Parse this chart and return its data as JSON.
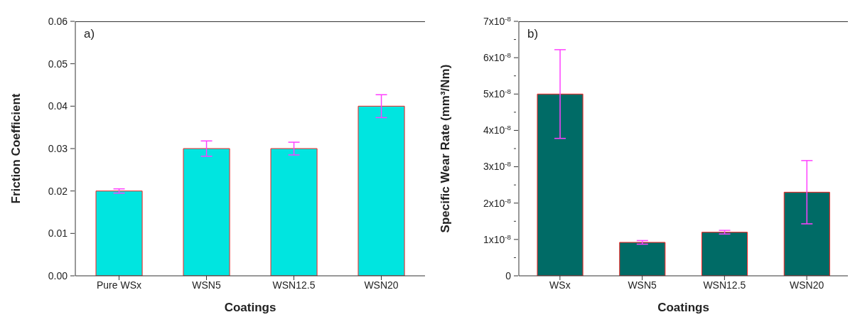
{
  "chart_data": [
    {
      "type": "bar",
      "title": "a)",
      "xlabel": "Coatings",
      "ylabel": "Friction Coefficient",
      "categories": [
        "Pure WSx",
        "WSN5",
        "WSN12.5",
        "WSN20"
      ],
      "values": [
        0.02,
        0.03,
        0.03,
        0.04
      ],
      "errors": [
        0.0005,
        0.0018,
        0.0015,
        0.0027
      ],
      "color": "#00e5e0",
      "ylim": [
        0,
        0.06
      ],
      "yticks": [
        {
          "value": 0,
          "label": "0.00"
        },
        {
          "value": 0.01,
          "label": "0.01"
        },
        {
          "value": 0.02,
          "label": "0.02"
        },
        {
          "value": 0.03,
          "label": "0.03"
        },
        {
          "value": 0.04,
          "label": "0.04"
        },
        {
          "value": 0.05,
          "label": "0.05"
        },
        {
          "value": 0.06,
          "label": "0.06"
        }
      ],
      "grid": false,
      "legend": false
    },
    {
      "type": "bar",
      "title": "b)",
      "xlabel": "Coatings",
      "ylabel": "Specific Wear Rate (mm³/Nm)",
      "categories": [
        "WSx",
        "WSN5",
        "WSN12.5",
        "WSN20"
      ],
      "values": [
        5e-08,
        9.2e-09,
        1.2e-08,
        2.3e-08
      ],
      "errors": [
        1.22e-08,
        5e-10,
        5e-10,
        8.7e-09
      ],
      "color": "#006b66",
      "ylim": [
        0,
        7e-08
      ],
      "yticks": [
        0,
        {
          "value": 5e-09,
          "label": null
        },
        {
          "value": 1e-08,
          "label": "1x10$^{-8}$"
        },
        {
          "value": 1.5e-08,
          "label": null
        },
        {
          "value": 2e-08,
          "label": "2x10$^{-8}$"
        },
        {
          "value": 2.5e-08,
          "label": null
        },
        {
          "value": 3e-08,
          "label": "3x10$^{-8}$"
        },
        {
          "value": 3.5e-08,
          "label": null
        },
        {
          "value": 4e-08,
          "label": "4x10$^{-8}$"
        },
        {
          "value": 4.5e-08,
          "label": null
        },
        {
          "value": 5e-08,
          "label": "5x10$^{-8}$"
        },
        {
          "value": 5.5e-08,
          "label": null
        },
        {
          "value": 6e-08,
          "label": "6x10$^{-8}$"
        },
        {
          "value": 6.5e-08,
          "label": null
        },
        {
          "value": 7e-08,
          "label": "7x10$^{-8}$"
        }
      ],
      "grid": false,
      "legend": false
    }
  ]
}
